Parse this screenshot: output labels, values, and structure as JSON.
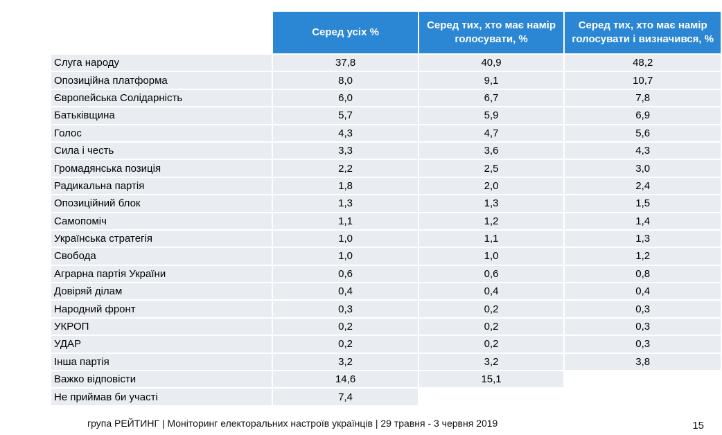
{
  "table": {
    "headers": [
      "",
      "Серед усіх %",
      "Серед тих, хто має намір голосувати, %",
      "Серед тих, хто має намір голосувати і визначився, %"
    ],
    "rows": [
      [
        "Слуга народу",
        "37,8",
        "40,9",
        "48,2"
      ],
      [
        "Опозиційна платформа",
        "8,0",
        "9,1",
        "10,7"
      ],
      [
        "Європейська Солідарність",
        "6,0",
        "6,7",
        "7,8"
      ],
      [
        "Батьківщина",
        "5,7",
        "5,9",
        "6,9"
      ],
      [
        "Голос",
        "4,3",
        "4,7",
        "5,6"
      ],
      [
        "Сила і честь",
        "3,3",
        "3,6",
        "4,3"
      ],
      [
        "Громадянська позиція",
        "2,2",
        "2,5",
        "3,0"
      ],
      [
        "Радикальна партія",
        "1,8",
        "2,0",
        "2,4"
      ],
      [
        "Опозиційний блок",
        "1,3",
        "1,3",
        "1,5"
      ],
      [
        "Самопоміч",
        "1,1",
        "1,2",
        "1,4"
      ],
      [
        "Українська стратегія",
        "1,0",
        "1,1",
        "1,3"
      ],
      [
        "Свобода",
        "1,0",
        "1,0",
        "1,2"
      ],
      [
        "Аграрна партія України",
        "0,6",
        "0,6",
        "0,8"
      ],
      [
        "Довіряй ділам",
        "0,4",
        "0,4",
        "0,4"
      ],
      [
        "Народний фронт",
        "0,3",
        "0,2",
        "0,3"
      ],
      [
        "УКРОП",
        "0,2",
        "0,2",
        "0,3"
      ],
      [
        "УДАР",
        "0,2",
        "0,2",
        "0,3"
      ],
      [
        "Інша партія",
        "3,2",
        "3,2",
        "3,8"
      ],
      [
        "Важко відповісти",
        "14,6",
        "15,1",
        ""
      ],
      [
        "Не приймав би участі",
        "7,4",
        "",
        ""
      ]
    ]
  },
  "footer": {
    "text": "група РЕЙТИНГ | Моніторинг електоральних настроїв українців  | 29 травня - 3 червня 2019",
    "page_number": "15"
  },
  "colors": {
    "header_bg": "#2b86d4",
    "cell_bg": "#e9ecf1"
  }
}
